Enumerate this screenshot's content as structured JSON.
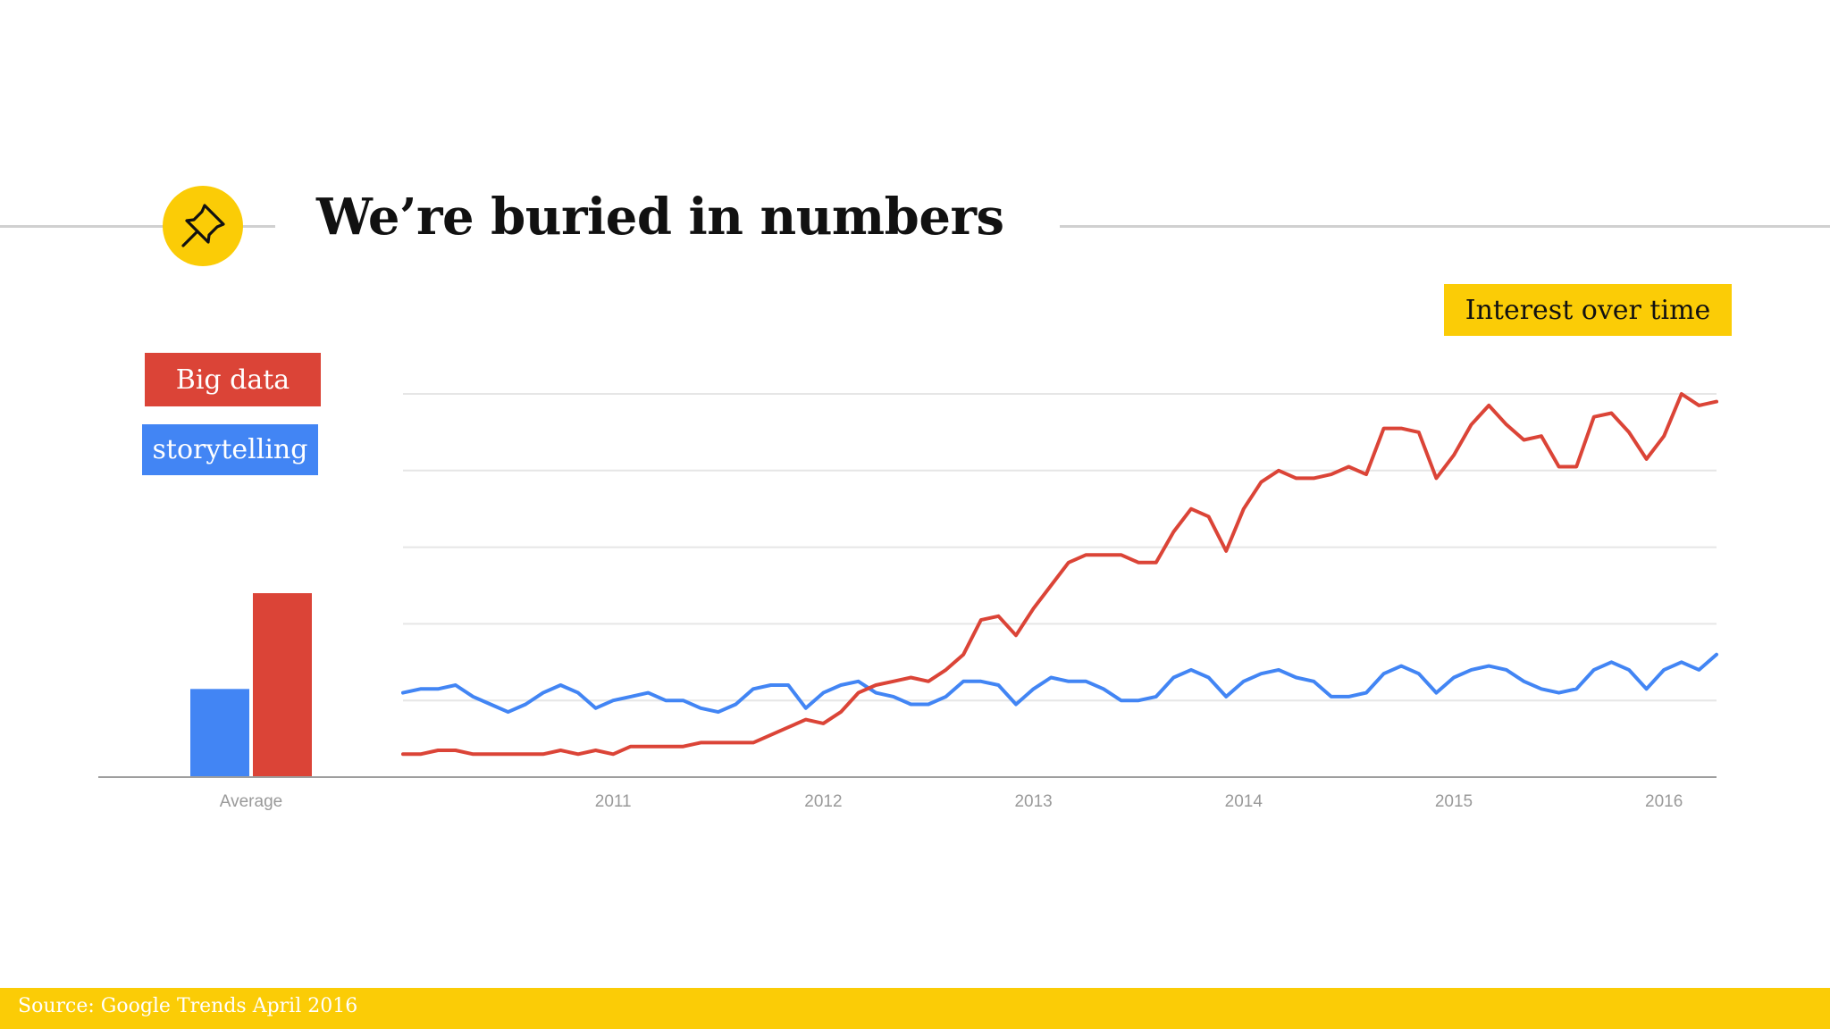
{
  "slide": {
    "title": "We’re buried in numbers",
    "panel_title": "Interest over time",
    "source": "Source: Google Trends April 2016",
    "pin_icon": "pushpin-icon"
  },
  "colors": {
    "accent": "#fbcc06",
    "big_data": "#db4437",
    "storytelling": "#4285f4",
    "axis_text": "#999999",
    "grid": "#e6e6e6"
  },
  "chart_data": {
    "type": "line",
    "x_start": "2010-01",
    "x_step": "month",
    "x_tick_labels": [
      "2011",
      "2012",
      "2013",
      "2014",
      "2015",
      "2016"
    ],
    "average_label": "Average",
    "ylim": [
      0,
      100
    ],
    "grid": true,
    "gridlines": [
      20,
      40,
      60,
      80,
      100
    ],
    "series": [
      {
        "name": "Big data",
        "color": "#db4437",
        "average": 48,
        "values": [
          6,
          6,
          7,
          7,
          6,
          6,
          6,
          6,
          6,
          7,
          6,
          7,
          6,
          8,
          8,
          8,
          8,
          9,
          9,
          9,
          9,
          11,
          13,
          15,
          14,
          17,
          22,
          24,
          25,
          26,
          25,
          28,
          32,
          41,
          42,
          37,
          44,
          50,
          56,
          58,
          58,
          58,
          56,
          56,
          64,
          70,
          68,
          59,
          70,
          77,
          80,
          78,
          78,
          79,
          81,
          79,
          91,
          91,
          90,
          78,
          84,
          92,
          97,
          92,
          88,
          89,
          81,
          81,
          94,
          95,
          90,
          83,
          89,
          100,
          97,
          98
        ],
        "avg_label": ""
      },
      {
        "name": "storytelling",
        "color": "#4285f4",
        "average": 23,
        "values": [
          22,
          23,
          23,
          24,
          21,
          19,
          17,
          19,
          22,
          24,
          22,
          18,
          20,
          21,
          22,
          20,
          20,
          18,
          17,
          19,
          23,
          24,
          24,
          18,
          22,
          24,
          25,
          22,
          21,
          19,
          19,
          21,
          25,
          25,
          24,
          19,
          23,
          26,
          25,
          25,
          23,
          20,
          20,
          21,
          26,
          28,
          26,
          21,
          25,
          27,
          28,
          26,
          25,
          21,
          21,
          22,
          27,
          29,
          27,
          22,
          26,
          28,
          29,
          28,
          25,
          23,
          22,
          23,
          28,
          30,
          28,
          23,
          28,
          30,
          28,
          32
        ]
      }
    ]
  }
}
